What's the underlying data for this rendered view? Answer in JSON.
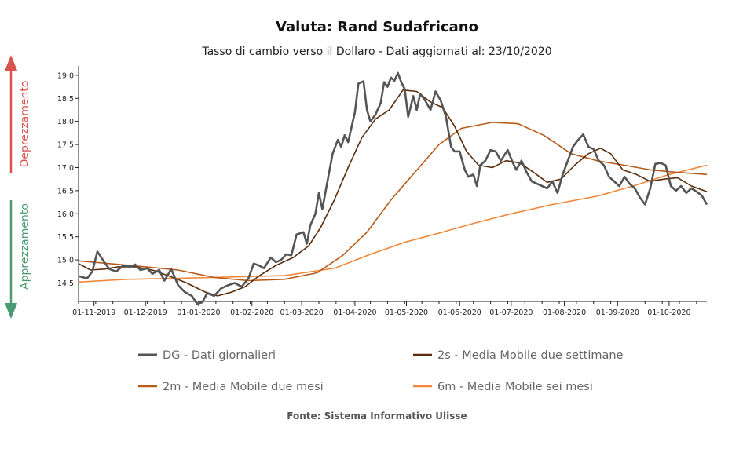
{
  "chart_data": {
    "type": "line",
    "title": "Valuta: Rand Sudafricano",
    "subtitle": "Tasso di cambio verso il Dollaro - Dati aggiornati al: 23/10/2020",
    "source": "Fonte: Sistema Informativo Ulisse",
    "side_labels": {
      "top": "Deprezzamento",
      "bottom": "Apprezzamento",
      "top_color": "#d9534f",
      "bottom_color": "#4a9a72"
    },
    "x_range": [
      "2019-10-23",
      "2020-10-23"
    ],
    "ylim": [
      14.1,
      19.1
    ],
    "y_ticks": [
      14.5,
      15.0,
      15.5,
      16.0,
      16.5,
      17.0,
      17.5,
      18.0,
      18.5,
      19.0
    ],
    "y_tick_labels": [
      "14.5",
      "15.0",
      "15.5",
      "16.0",
      "16.5",
      "17.0",
      "17.5",
      "18.0",
      "18.5",
      "19.0"
    ],
    "x_ticks": [
      "2019-11-01",
      "2019-12-01",
      "2020-01-01",
      "2020-02-01",
      "2020-03-01",
      "2020-04-01",
      "2020-05-01",
      "2020-06-01",
      "2020-07-01",
      "2020-08-01",
      "2020-09-01",
      "2020-10-01"
    ],
    "x_tick_labels": [
      "01-11-2019",
      "01-12-2019",
      "01-01-2020",
      "01-02-2020",
      "01-03-2020",
      "01-04-2020",
      "01-05-2020",
      "01-06-2020",
      "01-07-2020",
      "01-08-2020",
      "01-09-2020",
      "01-10-2020"
    ],
    "legend_placement": "bottom",
    "grid": false,
    "series": [
      {
        "name": "DG - Dati giornalieri",
        "color": "#555555",
        "width": 2.6,
        "points": [
          [
            "2019-10-23",
            14.65
          ],
          [
            "2019-10-28",
            14.6
          ],
          [
            "2019-10-31",
            14.75
          ],
          [
            "2019-11-03",
            15.18
          ],
          [
            "2019-11-07",
            14.95
          ],
          [
            "2019-11-10",
            14.8
          ],
          [
            "2019-11-14",
            14.75
          ],
          [
            "2019-11-18",
            14.88
          ],
          [
            "2019-11-22",
            14.85
          ],
          [
            "2019-11-25",
            14.9
          ],
          [
            "2019-11-28",
            14.78
          ],
          [
            "2019-12-02",
            14.82
          ],
          [
            "2019-12-05",
            14.7
          ],
          [
            "2019-12-09",
            14.78
          ],
          [
            "2019-12-12",
            14.55
          ],
          [
            "2019-12-16",
            14.8
          ],
          [
            "2019-12-20",
            14.45
          ],
          [
            "2019-12-24",
            14.3
          ],
          [
            "2019-12-28",
            14.22
          ],
          [
            "2019-12-31",
            14.05
          ],
          [
            "2020-01-03",
            14.08
          ],
          [
            "2020-01-06",
            14.28
          ],
          [
            "2020-01-10",
            14.22
          ],
          [
            "2020-01-14",
            14.38
          ],
          [
            "2020-01-18",
            14.45
          ],
          [
            "2020-01-22",
            14.5
          ],
          [
            "2020-01-26",
            14.42
          ],
          [
            "2020-01-30",
            14.6
          ],
          [
            "2020-02-02",
            14.92
          ],
          [
            "2020-02-05",
            14.88
          ],
          [
            "2020-02-08",
            14.82
          ],
          [
            "2020-02-12",
            15.05
          ],
          [
            "2020-02-15",
            14.95
          ],
          [
            "2020-02-18",
            15.0
          ],
          [
            "2020-02-21",
            15.12
          ],
          [
            "2020-02-24",
            15.1
          ],
          [
            "2020-02-27",
            15.55
          ],
          [
            "2020-03-02",
            15.6
          ],
          [
            "2020-03-04",
            15.35
          ],
          [
            "2020-03-06",
            15.75
          ],
          [
            "2020-03-09",
            16.0
          ],
          [
            "2020-03-11",
            16.45
          ],
          [
            "2020-03-13",
            16.1
          ],
          [
            "2020-03-16",
            16.7
          ],
          [
            "2020-03-19",
            17.3
          ],
          [
            "2020-03-22",
            17.6
          ],
          [
            "2020-03-24",
            17.45
          ],
          [
            "2020-03-26",
            17.7
          ],
          [
            "2020-03-28",
            17.55
          ],
          [
            "2020-04-01",
            18.2
          ],
          [
            "2020-04-03",
            18.82
          ],
          [
            "2020-04-06",
            18.87
          ],
          [
            "2020-04-08",
            18.25
          ],
          [
            "2020-04-10",
            18.0
          ],
          [
            "2020-04-13",
            18.15
          ],
          [
            "2020-04-16",
            18.4
          ],
          [
            "2020-04-18",
            18.85
          ],
          [
            "2020-04-20",
            18.75
          ],
          [
            "2020-04-22",
            18.95
          ],
          [
            "2020-04-24",
            18.88
          ],
          [
            "2020-04-26",
            19.05
          ],
          [
            "2020-04-28",
            18.85
          ],
          [
            "2020-04-30",
            18.7
          ],
          [
            "2020-05-02",
            18.1
          ],
          [
            "2020-05-05",
            18.55
          ],
          [
            "2020-05-07",
            18.25
          ],
          [
            "2020-05-09",
            18.6
          ],
          [
            "2020-05-12",
            18.45
          ],
          [
            "2020-05-15",
            18.25
          ],
          [
            "2020-05-18",
            18.65
          ],
          [
            "2020-05-21",
            18.45
          ],
          [
            "2020-05-24",
            18.1
          ],
          [
            "2020-05-27",
            17.45
          ],
          [
            "2020-05-29",
            17.35
          ],
          [
            "2020-06-01",
            17.35
          ],
          [
            "2020-06-04",
            16.95
          ],
          [
            "2020-06-06",
            16.8
          ],
          [
            "2020-06-09",
            16.85
          ],
          [
            "2020-06-11",
            16.6
          ],
          [
            "2020-06-13",
            17.05
          ],
          [
            "2020-06-16",
            17.15
          ],
          [
            "2020-06-19",
            17.38
          ],
          [
            "2020-06-22",
            17.35
          ],
          [
            "2020-06-25",
            17.15
          ],
          [
            "2020-06-29",
            17.38
          ],
          [
            "2020-07-02",
            17.1
          ],
          [
            "2020-07-04",
            16.95
          ],
          [
            "2020-07-07",
            17.15
          ],
          [
            "2020-07-10",
            16.9
          ],
          [
            "2020-07-13",
            16.7
          ],
          [
            "2020-07-16",
            16.65
          ],
          [
            "2020-07-19",
            16.6
          ],
          [
            "2020-07-22",
            16.55
          ],
          [
            "2020-07-25",
            16.7
          ],
          [
            "2020-07-28",
            16.45
          ],
          [
            "2020-07-31",
            16.85
          ],
          [
            "2020-08-03",
            17.15
          ],
          [
            "2020-08-06",
            17.45
          ],
          [
            "2020-08-09",
            17.6
          ],
          [
            "2020-08-12",
            17.72
          ],
          [
            "2020-08-15",
            17.45
          ],
          [
            "2020-08-18",
            17.4
          ],
          [
            "2020-08-21",
            17.15
          ],
          [
            "2020-08-24",
            17.05
          ],
          [
            "2020-08-27",
            16.8
          ],
          [
            "2020-08-30",
            16.7
          ],
          [
            "2020-09-02",
            16.6
          ],
          [
            "2020-09-05",
            16.8
          ],
          [
            "2020-09-08",
            16.65
          ],
          [
            "2020-09-11",
            16.55
          ],
          [
            "2020-09-14",
            16.35
          ],
          [
            "2020-09-17",
            16.2
          ],
          [
            "2020-09-20",
            16.55
          ],
          [
            "2020-09-23",
            17.08
          ],
          [
            "2020-09-26",
            17.1
          ],
          [
            "2020-09-29",
            17.05
          ],
          [
            "2020-10-02",
            16.6
          ],
          [
            "2020-10-05",
            16.5
          ],
          [
            "2020-10-08",
            16.6
          ],
          [
            "2020-10-11",
            16.45
          ],
          [
            "2020-10-14",
            16.55
          ],
          [
            "2020-10-17",
            16.48
          ],
          [
            "2020-10-20",
            16.4
          ],
          [
            "2020-10-23",
            16.2
          ]
        ]
      },
      {
        "name": "2s - Media Mobile due settimane",
        "color": "#5a2d0c",
        "width": 1.6,
        "points": [
          [
            "2019-10-23",
            14.92
          ],
          [
            "2019-10-30",
            14.78
          ],
          [
            "2019-11-07",
            14.8
          ],
          [
            "2019-11-15",
            14.85
          ],
          [
            "2019-11-25",
            14.85
          ],
          [
            "2019-12-05",
            14.78
          ],
          [
            "2019-12-15",
            14.65
          ],
          [
            "2019-12-25",
            14.5
          ],
          [
            "2020-01-05",
            14.3
          ],
          [
            "2020-01-12",
            14.22
          ],
          [
            "2020-01-20",
            14.3
          ],
          [
            "2020-01-28",
            14.42
          ],
          [
            "2020-02-05",
            14.65
          ],
          [
            "2020-02-15",
            14.88
          ],
          [
            "2020-02-25",
            15.05
          ],
          [
            "2020-03-05",
            15.3
          ],
          [
            "2020-03-12",
            15.7
          ],
          [
            "2020-03-20",
            16.3
          ],
          [
            "2020-03-28",
            17.0
          ],
          [
            "2020-04-05",
            17.65
          ],
          [
            "2020-04-13",
            18.05
          ],
          [
            "2020-04-21",
            18.25
          ],
          [
            "2020-04-29",
            18.68
          ],
          [
            "2020-05-07",
            18.65
          ],
          [
            "2020-05-15",
            18.42
          ],
          [
            "2020-05-22",
            18.3
          ],
          [
            "2020-05-29",
            17.9
          ],
          [
            "2020-06-05",
            17.35
          ],
          [
            "2020-06-12",
            17.05
          ],
          [
            "2020-06-20",
            17.0
          ],
          [
            "2020-06-28",
            17.15
          ],
          [
            "2020-07-06",
            17.1
          ],
          [
            "2020-07-14",
            16.9
          ],
          [
            "2020-07-22",
            16.68
          ],
          [
            "2020-07-30",
            16.75
          ],
          [
            "2020-08-07",
            17.05
          ],
          [
            "2020-08-15",
            17.3
          ],
          [
            "2020-08-22",
            17.42
          ],
          [
            "2020-08-28",
            17.3
          ],
          [
            "2020-09-04",
            16.95
          ],
          [
            "2020-09-12",
            16.85
          ],
          [
            "2020-09-20",
            16.7
          ],
          [
            "2020-09-28",
            16.75
          ],
          [
            "2020-10-06",
            16.78
          ],
          [
            "2020-10-14",
            16.6
          ],
          [
            "2020-10-23",
            16.48
          ]
        ]
      },
      {
        "name": "2m - Media Mobile due mesi",
        "color": "#b85a18",
        "width": 1.6,
        "points": [
          [
            "2019-10-23",
            14.98
          ],
          [
            "2019-11-10",
            14.92
          ],
          [
            "2019-12-01",
            14.85
          ],
          [
            "2019-12-20",
            14.78
          ],
          [
            "2020-01-10",
            14.62
          ],
          [
            "2020-01-30",
            14.55
          ],
          [
            "2020-02-20",
            14.58
          ],
          [
            "2020-03-10",
            14.72
          ],
          [
            "2020-03-25",
            15.1
          ],
          [
            "2020-04-08",
            15.6
          ],
          [
            "2020-04-22",
            16.3
          ],
          [
            "2020-05-06",
            16.9
          ],
          [
            "2020-05-20",
            17.5
          ],
          [
            "2020-06-02",
            17.85
          ],
          [
            "2020-06-20",
            17.98
          ],
          [
            "2020-07-05",
            17.95
          ],
          [
            "2020-07-20",
            17.7
          ],
          [
            "2020-08-05",
            17.3
          ],
          [
            "2020-08-20",
            17.15
          ],
          [
            "2020-09-05",
            17.05
          ],
          [
            "2020-09-20",
            16.95
          ],
          [
            "2020-10-05",
            16.9
          ],
          [
            "2020-10-23",
            16.85
          ]
        ]
      },
      {
        "name": "6m - Media Mobile sei mesi",
        "color": "#f0883a",
        "width": 1.6,
        "points": [
          [
            "2019-10-23",
            14.52
          ],
          [
            "2019-11-20",
            14.58
          ],
          [
            "2019-12-20",
            14.6
          ],
          [
            "2020-01-20",
            14.63
          ],
          [
            "2020-02-20",
            14.66
          ],
          [
            "2020-03-20",
            14.82
          ],
          [
            "2020-04-10",
            15.12
          ],
          [
            "2020-04-30",
            15.38
          ],
          [
            "2020-05-20",
            15.58
          ],
          [
            "2020-06-10",
            15.8
          ],
          [
            "2020-07-01",
            16.0
          ],
          [
            "2020-07-25",
            16.2
          ],
          [
            "2020-08-20",
            16.38
          ],
          [
            "2020-09-10",
            16.6
          ],
          [
            "2020-10-01",
            16.85
          ],
          [
            "2020-10-23",
            17.05
          ]
        ]
      }
    ]
  }
}
